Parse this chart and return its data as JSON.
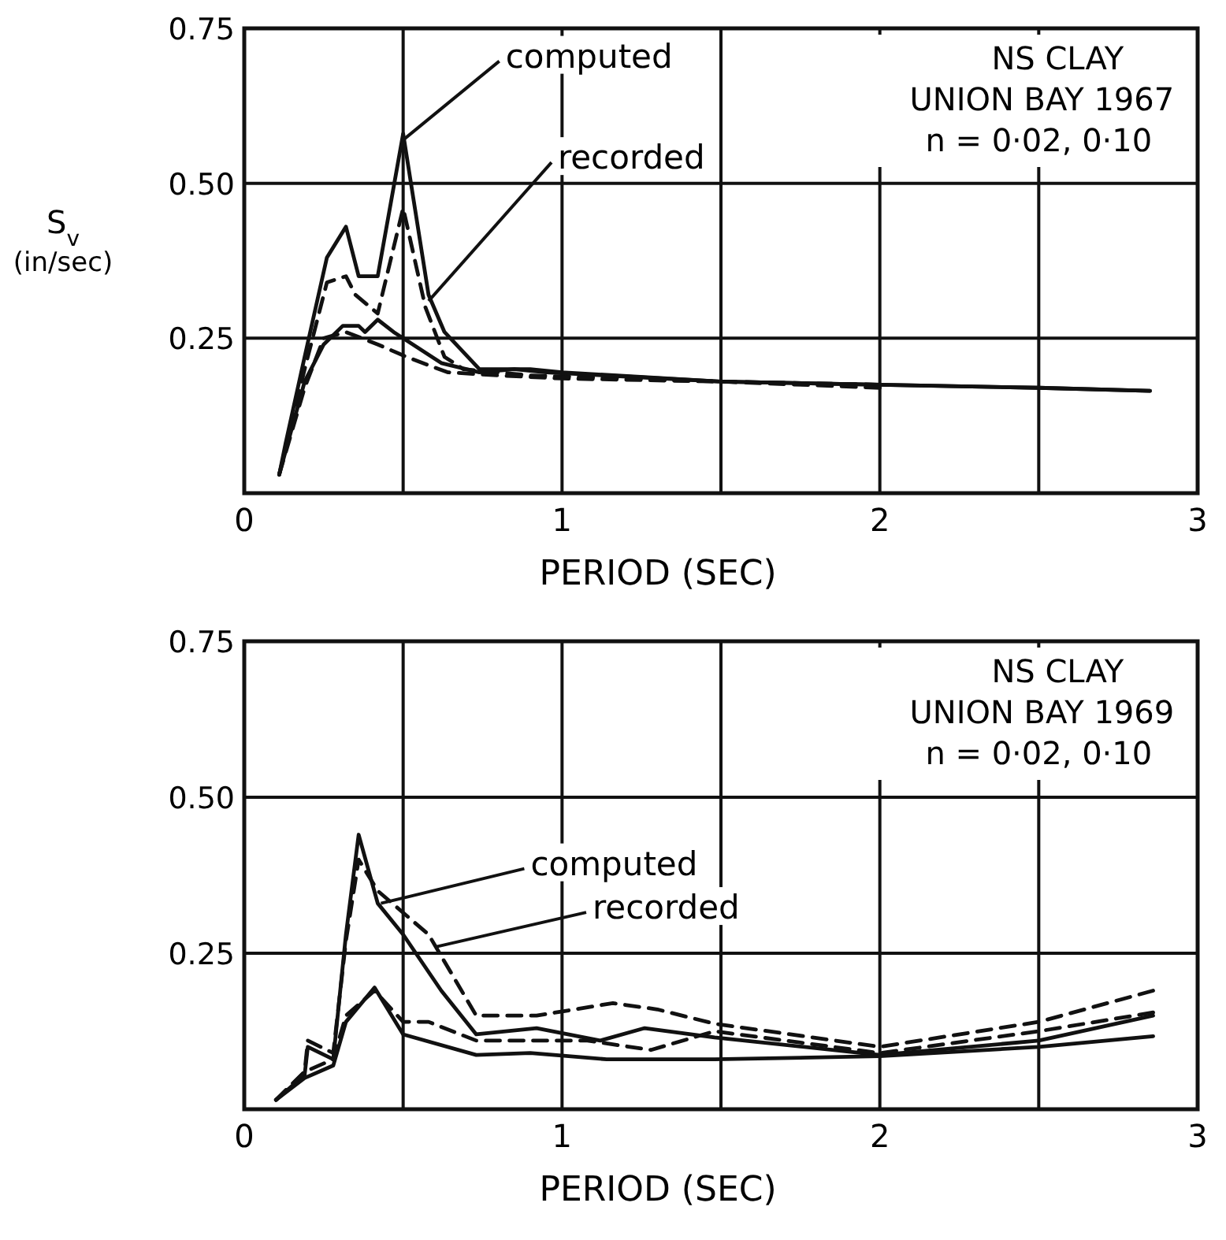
{
  "chart_data": [
    {
      "type": "line",
      "title": "NS CLAY",
      "subtitle": "UNION BAY 1967",
      "xlabel": "PERIOD (SEC)",
      "ylabel": "S$_{v}$ (in/sec)",
      "xlim": [
        0,
        3
      ],
      "ylim": [
        0,
        0.75
      ],
      "xticks": [
        0,
        {
          "value": 0.5,
          "label": null
        },
        1,
        {
          "value": 1.5,
          "label": null
        },
        2,
        {
          "value": 2.5,
          "label": null
        },
        3
      ],
      "yticks": [
        {
          "value": 0.25,
          "label": "0.25"
        },
        {
          "value": 0.5,
          "label": "0.50"
        },
        {
          "value": 0.75,
          "label": "0.75"
        }
      ],
      "grid": true,
      "marker": "none",
      "annotations": [
        "n = 0·02, 0·10",
        {
          "text": "computed",
          "x": 0.5,
          "y": 0.57
        },
        {
          "text": "recorded",
          "x": 0.58,
          "y": 0.31
        }
      ],
      "series": [
        {
          "color": "#111111",
          "line_style": "solid",
          "x": [
            0.11,
            0.13,
            0.19,
            0.26,
            0.32,
            0.36,
            0.42,
            0.5,
            0.58,
            0.63,
            0.74,
            0.9,
            1.0,
            1.5,
            2.0,
            2.5,
            2.85
          ],
          "values": [
            0.03,
            0.08,
            0.22,
            0.38,
            0.43,
            0.35,
            0.35,
            0.58,
            0.32,
            0.26,
            0.2,
            0.2,
            0.195,
            0.18,
            0.175,
            0.17,
            0.165
          ]
        },
        {
          "color": "#111111",
          "line_style": "dashed",
          "x": [
            0.11,
            0.19,
            0.26,
            0.32,
            0.35,
            0.42,
            0.5,
            0.57,
            0.63,
            0.69,
            0.9,
            1.5,
            2.0
          ],
          "values": [
            0.03,
            0.2,
            0.34,
            0.35,
            0.32,
            0.29,
            0.46,
            0.3,
            0.22,
            0.2,
            0.19,
            0.18,
            0.175
          ]
        },
        {
          "color": "#111111",
          "line_style": "solid",
          "x": [
            0.11,
            0.19,
            0.25,
            0.31,
            0.36,
            0.38,
            0.42,
            0.47,
            0.62,
            0.74,
            0.85,
            0.95,
            1.5,
            2.0,
            2.5,
            2.85
          ],
          "values": [
            0.03,
            0.18,
            0.24,
            0.27,
            0.27,
            0.26,
            0.28,
            0.26,
            0.21,
            0.195,
            0.2,
            0.195,
            0.18,
            0.175,
            0.17,
            0.165
          ]
        },
        {
          "color": "#111111",
          "line_style": "dashed",
          "x": [
            0.11,
            0.19,
            0.25,
            0.32,
            0.42,
            0.51,
            0.64,
            0.8,
            1.0,
            1.5,
            2.0
          ],
          "values": [
            0.03,
            0.17,
            0.25,
            0.26,
            0.24,
            0.22,
            0.195,
            0.19,
            0.185,
            0.18,
            0.17
          ]
        }
      ]
    },
    {
      "type": "line",
      "title": "NS CLAY",
      "subtitle": "UNION BAY 1969",
      "xlabel": "PERIOD (SEC)",
      "xlim": [
        0,
        3
      ],
      "ylim": [
        0,
        0.75
      ],
      "xticks": [
        0,
        {
          "value": 0.5,
          "label": null
        },
        1,
        {
          "value": 1.5,
          "label": null
        },
        2,
        {
          "value": 2.5,
          "label": null
        },
        3
      ],
      "yticks": [
        {
          "value": 0.25,
          "label": "0.25"
        },
        {
          "value": 0.5,
          "label": "0.50"
        },
        {
          "value": 0.75,
          "label": "0.75"
        }
      ],
      "grid": true,
      "marker": "none",
      "annotations": [
        "n = 0·02, 0·10",
        {
          "text": "computed",
          "x": 0.43,
          "y": 0.33
        },
        {
          "text": "recorded",
          "x": 0.6,
          "y": 0.26
        }
      ],
      "series": [
        {
          "color": "#111111",
          "line_style": "solid",
          "x": [
            0.1,
            0.19,
            0.2,
            0.28,
            0.32,
            0.36,
            0.42,
            0.5,
            0.62,
            0.73,
            0.92,
            1.12,
            1.26,
            1.48,
            2.0,
            2.5,
            2.86
          ],
          "values": [
            0.015,
            0.055,
            0.1,
            0.08,
            0.28,
            0.44,
            0.33,
            0.28,
            0.19,
            0.12,
            0.13,
            0.11,
            0.13,
            0.115,
            0.087,
            0.11,
            0.15
          ]
        },
        {
          "color": "#111111",
          "line_style": "dashed",
          "x": [
            0.1,
            0.19,
            0.2,
            0.28,
            0.32,
            0.36,
            0.42,
            0.58,
            0.73,
            0.92,
            1.16,
            1.3,
            1.48,
            2.0,
            2.5,
            2.86
          ],
          "values": [
            0.015,
            0.06,
            0.11,
            0.09,
            0.27,
            0.4,
            0.35,
            0.28,
            0.15,
            0.15,
            0.17,
            0.16,
            0.137,
            0.1,
            0.14,
            0.19
          ]
        },
        {
          "color": "#111111",
          "line_style": "solid",
          "x": [
            0.1,
            0.19,
            0.28,
            0.32,
            0.41,
            0.5,
            0.73,
            0.9,
            1.14,
            1.48,
            2.0,
            2.5,
            2.86
          ],
          "values": [
            0.015,
            0.05,
            0.07,
            0.14,
            0.195,
            0.12,
            0.087,
            0.09,
            0.08,
            0.08,
            0.085,
            0.1,
            0.117
          ]
        },
        {
          "color": "#111111",
          "line_style": "dashed",
          "x": [
            0.1,
            0.19,
            0.28,
            0.32,
            0.41,
            0.5,
            0.58,
            0.73,
            0.92,
            1.08,
            1.28,
            1.48,
            2.0,
            2.5,
            2.86
          ],
          "values": [
            0.015,
            0.06,
            0.08,
            0.15,
            0.19,
            0.14,
            0.14,
            0.11,
            0.11,
            0.11,
            0.095,
            0.125,
            0.09,
            0.125,
            0.155
          ]
        }
      ]
    }
  ]
}
